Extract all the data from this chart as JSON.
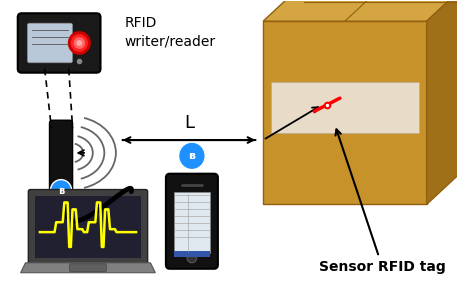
{
  "bg_color": "#ffffff",
  "rfid_reader_label": "RFID\nwriter/reader",
  "sensor_label": "Sensor RFID tag",
  "L_label": "L",
  "fig_width": 4.74,
  "fig_height": 2.86,
  "dpi": 100,
  "box_front_color": "#c8922a",
  "box_top_color": "#d4a540",
  "box_right_color": "#a07018",
  "box_edge_color": "#906010",
  "label_rect_color": "#e8dcc8",
  "bluetooth_color": "#1E90FF",
  "signal_color": "#666666",
  "label_fontsize": 10,
  "annotation_fontsize": 9,
  "laptop_screen_color": "#202030",
  "laptop_body_color": "#606060",
  "laptop_base_color": "#808080",
  "phone_body_color": "#111111",
  "phone_screen_color": "#e0e8f0"
}
